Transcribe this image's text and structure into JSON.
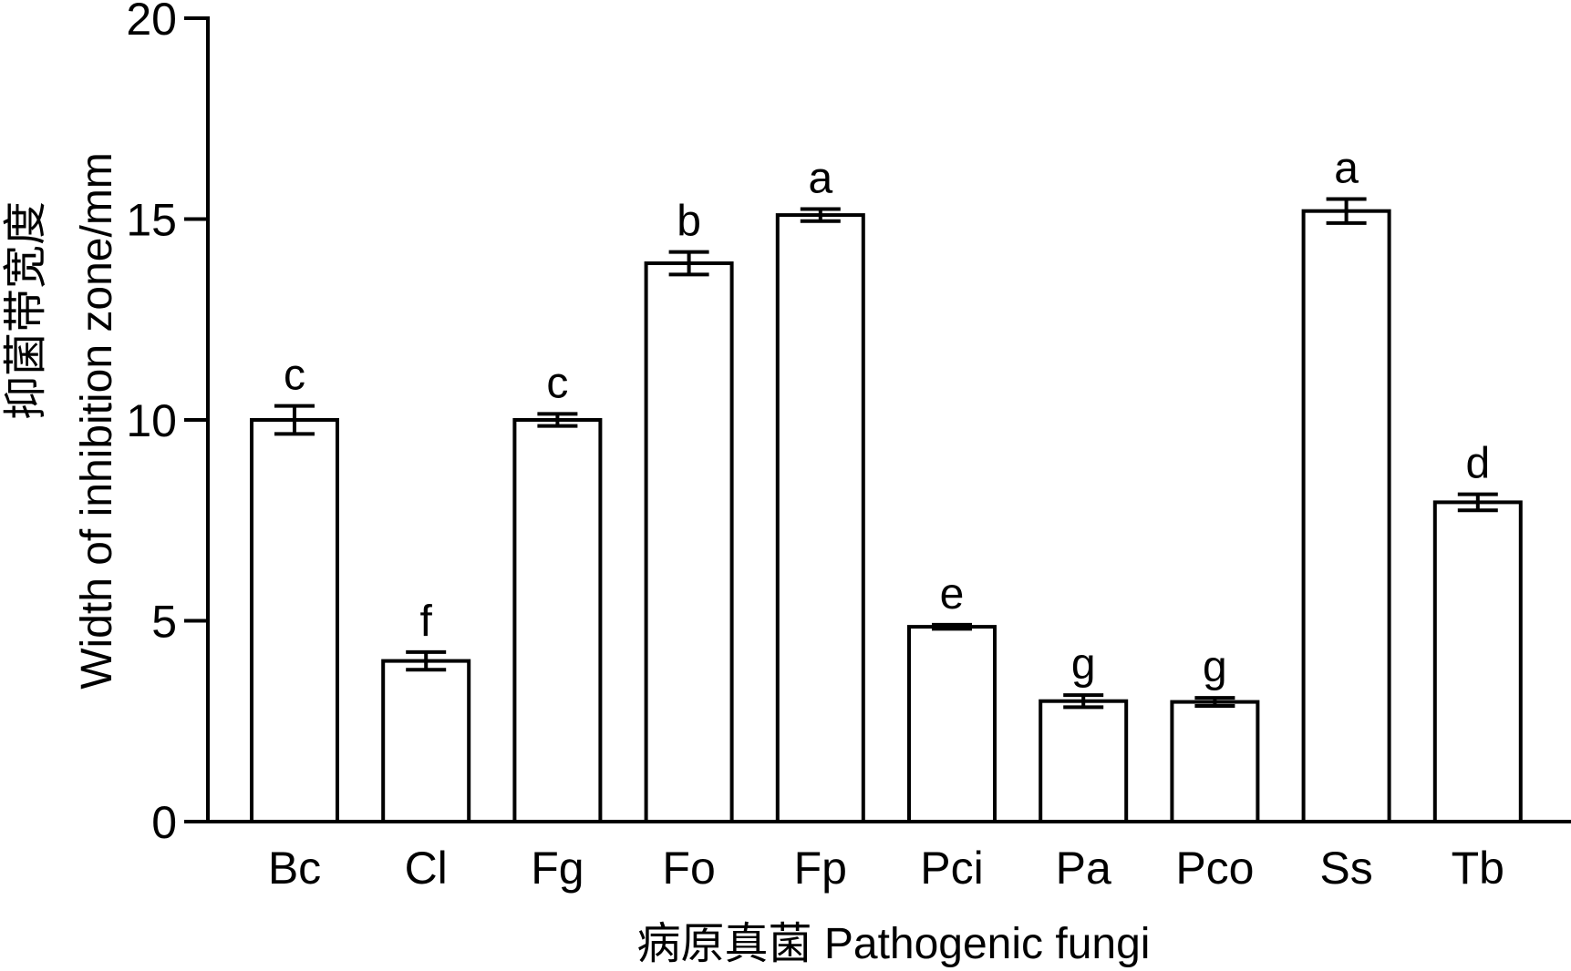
{
  "chart_data": {
    "type": "bar",
    "xlabel": "病原真菌 Pathogenic fungi",
    "ylabel_line1": "抑菌带宽度",
    "ylabel_line2": "Width of inhibition zone/mm",
    "ylim": [
      0,
      20
    ],
    "yticks": [
      0,
      5,
      10,
      15,
      20
    ],
    "grid": false,
    "categories": [
      "Bc",
      "Cl",
      "Fg",
      "Fo",
      "Fp",
      "Pci",
      "Pa",
      "Pco",
      "Ss",
      "Tb"
    ],
    "values": [
      10.0,
      4.0,
      10.0,
      13.9,
      15.1,
      4.85,
      3.0,
      2.98,
      15.2,
      7.95
    ],
    "errors": [
      0.35,
      0.22,
      0.15,
      0.28,
      0.15,
      0.05,
      0.15,
      0.1,
      0.3,
      0.2
    ],
    "significance": [
      "c",
      "f",
      "c",
      "b",
      "a",
      "e",
      "g",
      "g",
      "a",
      "d"
    ]
  }
}
